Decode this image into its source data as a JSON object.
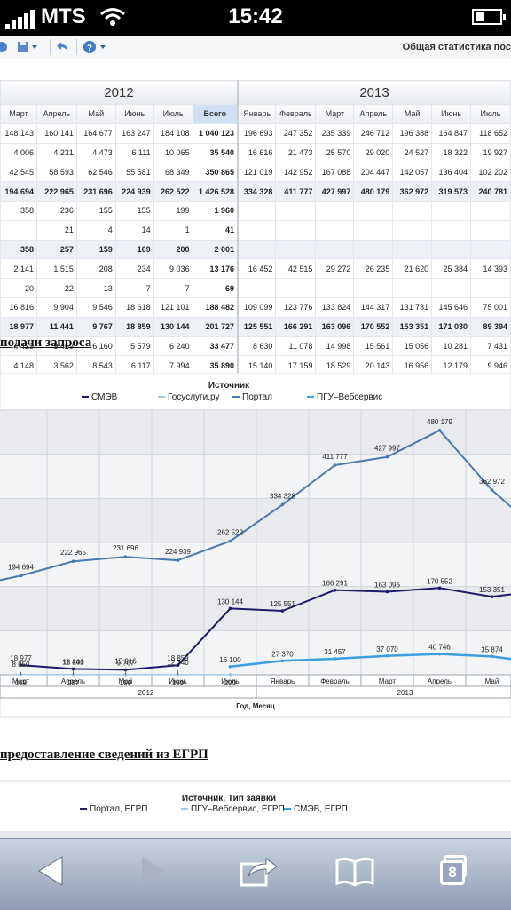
{
  "status": {
    "carrier": "MTS",
    "time": "15:42"
  },
  "toolbar": {
    "title": "Общая статистика пос"
  },
  "table": {
    "year_2012": "2012",
    "year_2013": "2013",
    "headers": [
      "Март",
      "Апрель",
      "Май",
      "Июнь",
      "Июль",
      "Всего",
      "Январь",
      "Февраль",
      "Март",
      "Апрель",
      "Май",
      "Июнь",
      "Июль"
    ],
    "rows": [
      {
        "bold": false,
        "cells": [
          "148 143",
          "160 141",
          "164 677",
          "163 247",
          "184 108",
          "1 040 123",
          "196 693",
          "247 352",
          "235 339",
          "246 712",
          "196 388",
          "164 847",
          "118 652"
        ]
      },
      {
        "bold": false,
        "cells": [
          "4 006",
          "4 231",
          "4 473",
          "6 111",
          "10 065",
          "35 540",
          "16 616",
          "21 473",
          "25 570",
          "29 020",
          "24 527",
          "18 322",
          "19 927"
        ]
      },
      {
        "bold": false,
        "cells": [
          "42 545",
          "58 593",
          "62 546",
          "55 581",
          "68 349",
          "350 865",
          "121 019",
          "142 952",
          "167 088",
          "204 447",
          "142 057",
          "136 404",
          "102 202"
        ]
      },
      {
        "bold": true,
        "cells": [
          "194 694",
          "222 965",
          "231 696",
          "224 939",
          "262 522",
          "1 426 528",
          "334 328",
          "411 777",
          "427 997",
          "480 179",
          "362 972",
          "319 573",
          "240 781"
        ]
      },
      {
        "bold": false,
        "cells": [
          "358",
          "236",
          "155",
          "155",
          "199",
          "1 960",
          "",
          "",
          "",
          "",
          "",
          "",
          ""
        ]
      },
      {
        "bold": false,
        "cells": [
          "",
          "21",
          "4",
          "14",
          "1",
          "41",
          "",
          "",
          "",
          "",
          "",
          "",
          ""
        ]
      },
      {
        "bold": true,
        "cells": [
          "358",
          "257",
          "159",
          "169",
          "200",
          "2 001",
          "",
          "",
          "",
          "",
          "",
          "",
          ""
        ]
      },
      {
        "bold": false,
        "cells": [
          "2 141",
          "1 515",
          "208",
          "234",
          "9 036",
          "13 176",
          "16 452",
          "42 515",
          "29 272",
          "26 235",
          "21 620",
          "25 384",
          "14 393"
        ]
      },
      {
        "bold": false,
        "cells": [
          "20",
          "22",
          "13",
          "7",
          "7",
          "69",
          "",
          "",
          "",
          "",
          "",
          "",
          ""
        ]
      },
      {
        "bold": false,
        "cells": [
          "16 816",
          "9 904",
          "9 546",
          "18 618",
          "121 101",
          "188 482",
          "109 099",
          "123 776",
          "133 824",
          "144 317",
          "131 731",
          "145 646",
          "75 001"
        ]
      },
      {
        "bold": true,
        "cells": [
          "18 977",
          "11 441",
          "9 767",
          "18 859",
          "130 144",
          "201 727",
          "125 551",
          "166 291",
          "163 096",
          "170 552",
          "153 351",
          "171 030",
          "89 394"
        ]
      },
      {
        "bold": false,
        "cells": [
          "4 429",
          "9 469",
          "6 160",
          "5 579",
          "6 240",
          "33 477",
          "8 630",
          "11 078",
          "14 998",
          "15 561",
          "15 056",
          "10 281",
          "7 431"
        ]
      },
      {
        "bold": false,
        "cells": [
          "4 148",
          "3 562",
          "8 543",
          "6 117",
          "7 994",
          "35 890",
          "15 140",
          "17 159",
          "18 529",
          "20 143",
          "16 956",
          "12 179",
          "9 946"
        ]
      }
    ]
  },
  "section1_title": "подачи запроса",
  "section2_title": "предоставление сведений из ЕГРП",
  "chart_data": [
    {
      "type": "line",
      "title": "Источник",
      "categories": [
        "Март",
        "Апрель",
        "Май",
        "Июнь",
        "Июль",
        "Январь",
        "Февраль",
        "Март",
        "Апрель",
        "Май"
      ],
      "year_groups": [
        {
          "label": "2012"
        },
        {
          "label": "2013"
        }
      ],
      "xlabel": "Год, Месяц",
      "series": [
        {
          "name": "СМЭВ",
          "color": "#1e1a6b",
          "values": [
            18977,
            11441,
            9767,
            18859,
            130144,
            125551,
            166291,
            163096,
            170552,
            153351
          ]
        },
        {
          "name": "Госуслуги.ру",
          "color": "#9ec8ea",
          "values": [
            358,
            257,
            159,
            169,
            200,
            null,
            null,
            null,
            null,
            null
          ]
        },
        {
          "name": "Портал",
          "color": "#4b78ad",
          "values": [
            194694,
            222965,
            231696,
            224939,
            262522,
            334328,
            411777,
            427997,
            480179,
            362972
          ]
        },
        {
          "name": "ПГУ–Вебсервис",
          "color": "#3d9fe0",
          "values": [
            null,
            null,
            null,
            null,
            16100,
            27370,
            31457,
            37070,
            40746,
            35874
          ]
        }
      ],
      "point_labels": [
        {
          "s": 0,
          "i": 0,
          "text": "18 977"
        },
        {
          "s": 0,
          "i": 1,
          "text": "11 441"
        },
        {
          "s": 0,
          "i": 2,
          "text": "9 767"
        },
        {
          "s": 0,
          "i": 3,
          "text": "18 859"
        },
        {
          "s": 0,
          "i": 4,
          "text": "130 144"
        },
        {
          "s": 0,
          "i": 5,
          "text": "125 551"
        },
        {
          "s": 0,
          "i": 6,
          "text": "166 291"
        },
        {
          "s": 0,
          "i": 7,
          "text": "163 096"
        },
        {
          "s": 0,
          "i": 8,
          "text": "170 552"
        },
        {
          "s": 0,
          "i": 9,
          "text": "153 351"
        },
        {
          "s": 1,
          "i": 0,
          "text": "358"
        },
        {
          "s": 1,
          "i": 1,
          "text": "257"
        },
        {
          "s": 1,
          "i": 2,
          "text": "159"
        },
        {
          "s": 1,
          "i": 3,
          "text": "169"
        },
        {
          "s": 1,
          "i": 4,
          "text": "200"
        },
        {
          "s": 2,
          "i": 0,
          "text": "194 694"
        },
        {
          "s": 2,
          "i": 1,
          "text": "222 965"
        },
        {
          "s": 2,
          "i": 2,
          "text": "231 696"
        },
        {
          "s": 2,
          "i": 3,
          "text": "224 939"
        },
        {
          "s": 2,
          "i": 4,
          "text": "262 522"
        },
        {
          "s": 2,
          "i": 5,
          "text": "334 328"
        },
        {
          "s": 2,
          "i": 6,
          "text": "411 777"
        },
        {
          "s": 2,
          "i": 7,
          "text": "427 997"
        },
        {
          "s": 2,
          "i": 8,
          "text": "480 179"
        },
        {
          "s": 2,
          "i": 9,
          "text": "362 972"
        },
        {
          "s": 3,
          "i": 4,
          "text": "16 100"
        },
        {
          "s": 3,
          "i": 5,
          "text": "27 370"
        },
        {
          "s": 3,
          "i": 6,
          "text": "31 457"
        },
        {
          "s": 3,
          "i": 7,
          "text": "37 070"
        },
        {
          "s": 3,
          "i": 8,
          "text": "40 746"
        },
        {
          "s": 3,
          "i": 9,
          "text": "35 874"
        }
      ],
      "extra_labels": [
        {
          "i": 0,
          "value": 8850,
          "text": "8 850"
        },
        {
          "i": 1,
          "value": 13200,
          "text": "13 200"
        },
        {
          "i": 2,
          "value": 15216,
          "text": "15 216"
        },
        {
          "i": 3,
          "value": 12340,
          "text": "12 340"
        }
      ],
      "ylim": [
        0,
        520000
      ],
      "grid": true
    },
    {
      "type": "line",
      "title": "Источник, Тип заявки",
      "series": [
        {
          "name": "Портал, ЕГРП",
          "color": "#1e1a6b"
        },
        {
          "name": "ПГУ–Вебсервис, ЕГРП",
          "color": "#9ec8ea"
        },
        {
          "name": "СМЭВ, ЕГРП",
          "color": "#3d9fe0"
        }
      ]
    }
  ],
  "bottombar": {
    "tabs_count": "8"
  },
  "icons": [
    "refresh-icon",
    "save-icon",
    "back-icon",
    "help-icon",
    "nav-back-icon",
    "nav-forward-icon",
    "share-icon",
    "bookmarks-icon",
    "tabs-icon"
  ]
}
